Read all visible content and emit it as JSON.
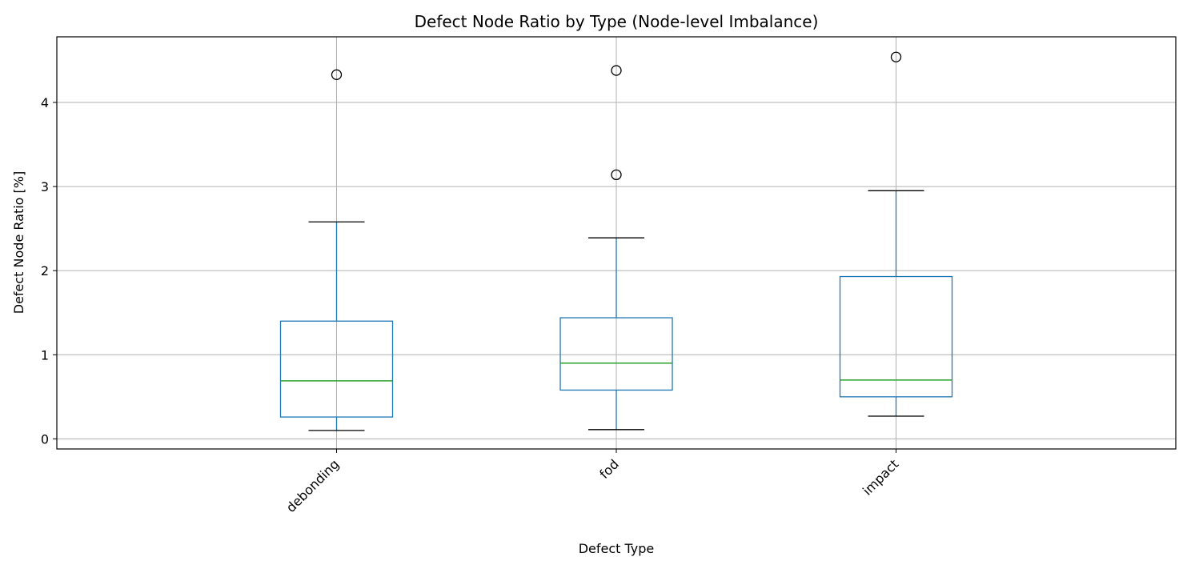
{
  "chart_data": {
    "type": "box",
    "title": "Defect Node Ratio by Type (Node-level Imbalance)",
    "xlabel": "Defect Type",
    "ylabel": "Defect Node Ratio [%]",
    "ylim": [
      -0.12,
      4.78
    ],
    "yticks": [
      0,
      1,
      2,
      3,
      4
    ],
    "grid": true,
    "categories": [
      "debonding",
      "fod",
      "impact"
    ],
    "boxes": [
      {
        "category": "debonding",
        "whisker_low": 0.1,
        "q1": 0.26,
        "median": 0.69,
        "q3": 1.4,
        "whisker_high": 2.58,
        "outliers": [
          4.33
        ]
      },
      {
        "category": "fod",
        "whisker_low": 0.11,
        "q1": 0.58,
        "median": 0.9,
        "q3": 1.44,
        "whisker_high": 2.39,
        "outliers": [
          3.14,
          4.38
        ]
      },
      {
        "category": "impact",
        "whisker_low": 0.27,
        "q1": 0.5,
        "median": 0.7,
        "q3": 1.93,
        "whisker_high": 2.95,
        "outliers": [
          4.54
        ]
      }
    ],
    "colors": {
      "box": "#1f77b4",
      "median": "#2ca02c",
      "whisker_cap": "#000000",
      "outlier": "#000000",
      "grid": "#b0b0b0"
    }
  }
}
